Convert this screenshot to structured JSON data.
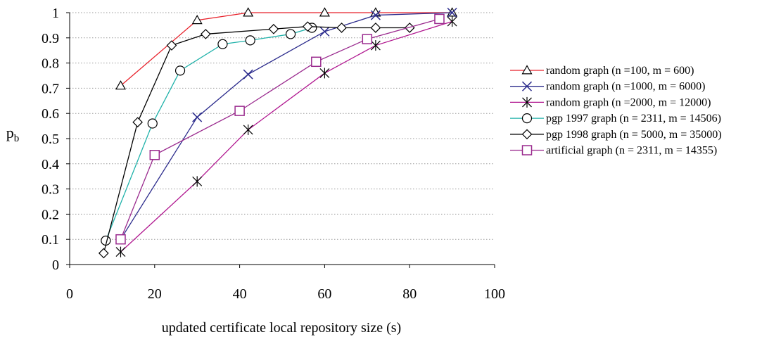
{
  "chart_data": {
    "type": "line",
    "title": "",
    "xlabel": "updated certificate local repository size (s)",
    "ylabel": "p",
    "ylabel_sub": "b",
    "xlim": [
      0,
      100
    ],
    "ylim": [
      0,
      1
    ],
    "x_ticks": [
      "0",
      "20",
      "40",
      "60",
      "80",
      "100"
    ],
    "y_ticks": [
      "0",
      "0.1",
      "0.2",
      "0.3",
      "0.4",
      "0.5",
      "0.6",
      "0.7",
      "0.8",
      "0.9",
      "1"
    ],
    "grid": "horizontal dotted",
    "legend_position": "right",
    "series": [
      {
        "name": "random graph (n =100, m = 600)",
        "color": "#e8202a",
        "marker": "triangle",
        "points": [
          [
            12,
            0.71
          ],
          [
            30,
            0.97
          ],
          [
            42,
            1.0
          ],
          [
            60,
            1.0
          ],
          [
            72,
            1.0
          ],
          [
            90,
            1.0
          ]
        ]
      },
      {
        "name": "random graph (n =1000, m = 6000)",
        "color": "#2b2b8c",
        "marker": "x",
        "points": [
          [
            12,
            0.1
          ],
          [
            30,
            0.585
          ],
          [
            42,
            0.755
          ],
          [
            60,
            0.925
          ],
          [
            72,
            0.99
          ],
          [
            90,
            1.0
          ]
        ]
      },
      {
        "name": "random graph (n =2000, m = 12000)",
        "color": "#b0168f",
        "marker": "asterisk",
        "points": [
          [
            12,
            0.05
          ],
          [
            30,
            0.33
          ],
          [
            42,
            0.535
          ],
          [
            60,
            0.76
          ],
          [
            72,
            0.87
          ],
          [
            90,
            0.965
          ]
        ]
      },
      {
        "name": "pgp 1997 graph (n = 2311, m = 14506)",
        "color": "#20b2aa",
        "marker": "circle",
        "points": [
          [
            8.5,
            0.095
          ],
          [
            19.5,
            0.56
          ],
          [
            26,
            0.77
          ],
          [
            36,
            0.875
          ],
          [
            42.5,
            0.89
          ],
          [
            52,
            0.915
          ],
          [
            57,
            0.94
          ]
        ]
      },
      {
        "name": "pgp 1998 graph (n = 5000, m = 35000)",
        "color": "#000000",
        "marker": "diamond",
        "points": [
          [
            8,
            0.045
          ],
          [
            16,
            0.565
          ],
          [
            24,
            0.87
          ],
          [
            32,
            0.915
          ],
          [
            48,
            0.935
          ],
          [
            56,
            0.945
          ],
          [
            64,
            0.94
          ],
          [
            72,
            0.94
          ],
          [
            80,
            0.94
          ]
        ]
      },
      {
        "name": "artificial graph (n = 2311, m = 14355)",
        "color": "#9a2a8e",
        "marker": "square",
        "points": [
          [
            12,
            0.1
          ],
          [
            20,
            0.435
          ],
          [
            40,
            0.61
          ],
          [
            58,
            0.805
          ],
          [
            70,
            0.895
          ],
          [
            87,
            0.975
          ]
        ]
      }
    ]
  }
}
